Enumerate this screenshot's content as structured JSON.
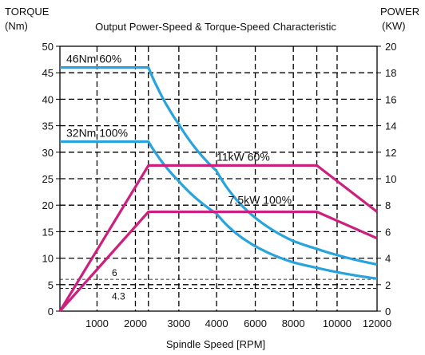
{
  "chart_data": {
    "type": "line",
    "title": "Output Power-Speed & Torque-Speed Characteristic",
    "left_axis": {
      "label_line1": "TORQUE",
      "label_line2": "(Nm)",
      "ylim": [
        0,
        50
      ],
      "ticks": [
        "0",
        "5",
        "10",
        "15",
        "20",
        "25",
        "30",
        "35",
        "40",
        "45",
        "50"
      ]
    },
    "right_axis": {
      "label_line1": "POWER",
      "label_line2": "(KW)",
      "ylim": [
        0,
        20
      ],
      "ticks": [
        "0",
        "2",
        "4",
        "6",
        "8",
        "10",
        "12",
        "14",
        "16",
        "18",
        "20"
      ]
    },
    "xlabel": "Spindle Speed [RPM]",
    "x_tick_labels": [
      "1000",
      "2000",
      "3000",
      "4000",
      "6000",
      "8000",
      "10000",
      "12000"
    ],
    "x_note": "non-linear speed scale: each tick label is read at its printed position; 2300 RPM is the base speed, 9000 RPM is where power starts to drop",
    "grid": true,
    "series": [
      {
        "name": "46Nm 60%",
        "axis": "left",
        "color": "#29a3dc",
        "x": [
          0,
          2300,
          3000,
          4000,
          6000,
          8000,
          10000,
          12000
        ],
        "y": [
          46,
          46,
          34.8,
          26.0,
          17.8,
          13.1,
          9.8,
          7.8
        ]
      },
      {
        "name": "32Nm 100%",
        "axis": "left",
        "color": "#29a3dc",
        "x": [
          0,
          2300,
          3000,
          4000,
          6000,
          8000,
          10000,
          12000
        ],
        "y": [
          32,
          32,
          24.5,
          18.0,
          12.3,
          8.8,
          6.8,
          5.6
        ]
      },
      {
        "name": "11kW 60%",
        "axis": "right",
        "color": "#cc1f7e",
        "x": [
          0,
          2300,
          9000,
          12000
        ],
        "y": [
          0,
          11,
          11,
          7.5
        ]
      },
      {
        "name": "7.5kW 100%",
        "axis": "right",
        "color": "#cc1f7e",
        "x": [
          0,
          2300,
          9000,
          12000
        ],
        "y": [
          0,
          7.5,
          7.5,
          5.5
        ]
      }
    ],
    "annotations": [
      {
        "text": "6",
        "value": 6,
        "axis": "left"
      },
      {
        "text": "4.3",
        "value": 4.3,
        "axis": "left"
      }
    ]
  }
}
